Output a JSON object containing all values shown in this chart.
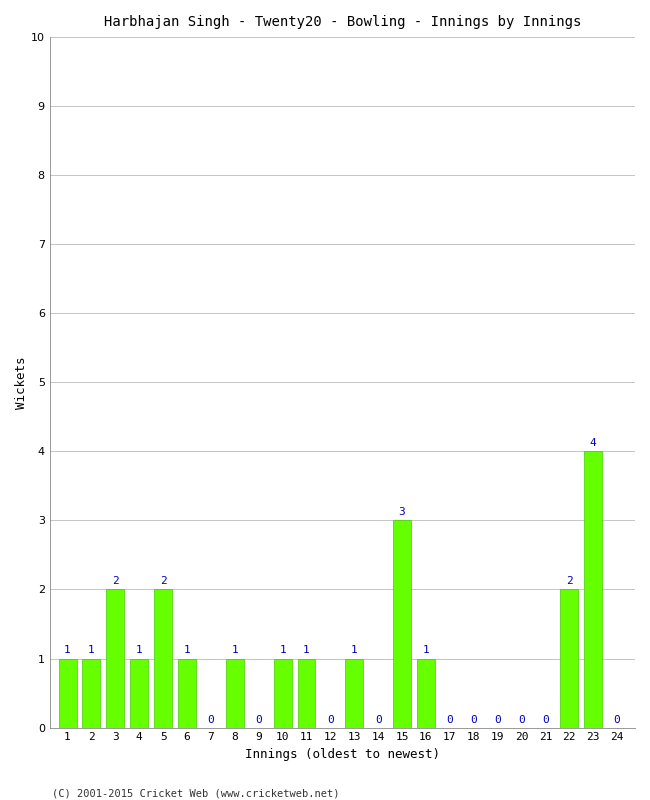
{
  "title": "Harbhajan Singh - Twenty20 - Bowling - Innings by Innings",
  "xlabel": "Innings (oldest to newest)",
  "ylabel": "Wickets",
  "footer": "(C) 2001-2015 Cricket Web (www.cricketweb.net)",
  "innings": [
    1,
    2,
    3,
    4,
    5,
    6,
    7,
    8,
    9,
    10,
    11,
    12,
    13,
    14,
    15,
    16,
    17,
    18,
    19,
    20,
    21,
    22,
    23,
    24
  ],
  "wickets": [
    1,
    1,
    2,
    1,
    2,
    1,
    0,
    1,
    0,
    1,
    1,
    0,
    1,
    0,
    3,
    1,
    0,
    0,
    0,
    0,
    0,
    2,
    4,
    0
  ],
  "bar_color": "#66ff00",
  "bar_edge_color": "#44cc00",
  "label_color": "#0000bb",
  "ylim": [
    0,
    10
  ],
  "yticks": [
    0,
    1,
    2,
    3,
    4,
    5,
    6,
    7,
    8,
    9,
    10
  ],
  "background_color": "#ffffff",
  "plot_background": "#ffffff",
  "grid_color": "#bbbbbb",
  "title_fontsize": 10,
  "axis_label_fontsize": 9,
  "tick_fontsize": 8,
  "annotation_fontsize": 8,
  "footer_fontsize": 7.5
}
